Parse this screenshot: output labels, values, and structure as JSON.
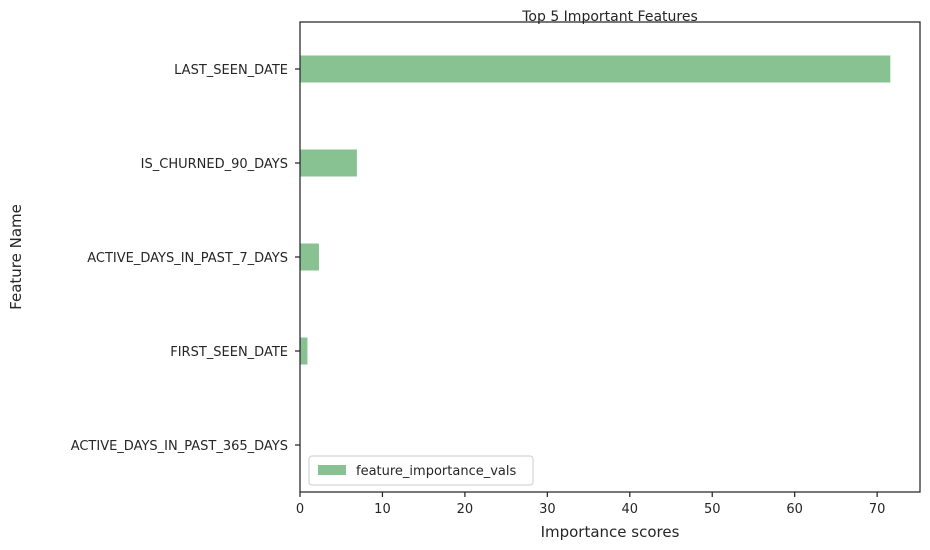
{
  "chart_data": {
    "type": "bar",
    "orientation": "horizontal",
    "title": "Top 5 Important Features",
    "xlabel": "Importance scores",
    "ylabel": "Feature Name",
    "categories": [
      "LAST_SEEN_DATE",
      "IS_CHURNED_90_DAYS",
      "ACTIVE_DAYS_IN_PAST_7_DAYS",
      "FIRST_SEEN_DATE",
      "ACTIVE_DAYS_IN_PAST_365_DAYS"
    ],
    "series": [
      {
        "name": "feature_importance_vals",
        "values": [
          71.6,
          6.9,
          2.3,
          0.9,
          0.0
        ],
        "color": "#88c293"
      }
    ],
    "xlim": [
      0,
      75.2
    ],
    "xticks": [
      0,
      10,
      20,
      30,
      40,
      50,
      60,
      70
    ],
    "grid": false,
    "legend": "lower-left"
  }
}
